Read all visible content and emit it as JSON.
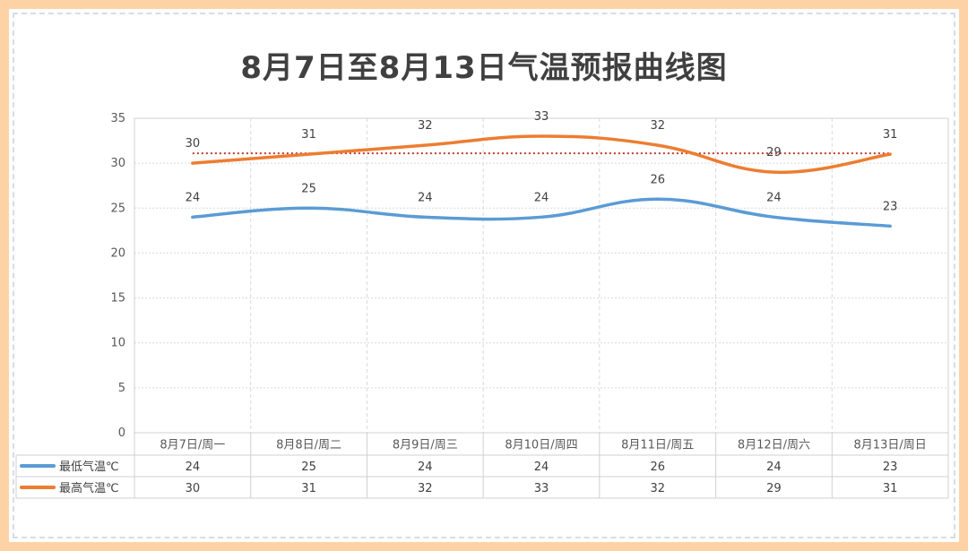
{
  "colors": {
    "frame": "#fdd3a6",
    "min_series": "#5b9bd5",
    "max_series": "#ed7d31",
    "avg_line": "#c0392b",
    "grid": "#d9d9d9"
  },
  "chart_data": {
    "type": "line",
    "title": "8月7日至8月13日气温预报曲线图",
    "categories": [
      "8月7日/周一",
      "8月8日/周二",
      "8月9日/周三",
      "8月10日/周四",
      "8月11日/周五",
      "8月12日/周六",
      "8月13日/周日"
    ],
    "series": [
      {
        "name": "最低气温℃",
        "values": [
          24,
          25,
          24,
          24,
          26,
          24,
          23
        ],
        "color": "#5b9bd5"
      },
      {
        "name": "最高气温℃",
        "values": [
          30,
          31,
          32,
          33,
          32,
          29,
          31
        ],
        "color": "#ed7d31"
      }
    ],
    "reference_line": {
      "value": 31.1,
      "style": "dotted",
      "color": "#c0392b"
    },
    "ylim": [
      0,
      35
    ],
    "yticks": [
      0,
      5,
      10,
      15,
      20,
      25,
      30,
      35
    ],
    "grid": true,
    "data_table": true,
    "smooth": true
  }
}
